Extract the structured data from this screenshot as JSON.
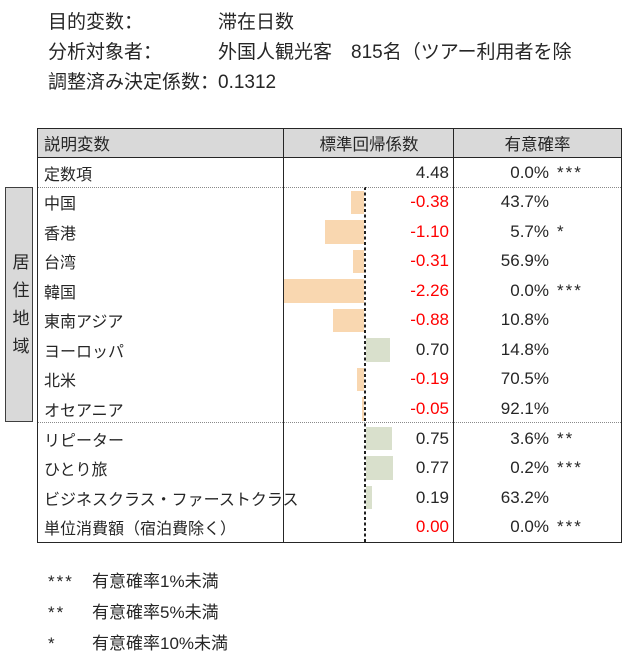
{
  "info": {
    "rows": [
      {
        "label": "目的変数：",
        "value": "滞在日数"
      },
      {
        "label": "分析対象者：",
        "value": "外国人観光客　815名（ツアー利用者を除"
      },
      {
        "label": "調整済み決定係数：",
        "value": "0.1312"
      }
    ]
  },
  "table": {
    "headers": {
      "variable": "説明変数",
      "coefficient": "標準回帰係数",
      "significance": "有意確率"
    },
    "group_label": "居住地域",
    "rows": [
      {
        "label": "定数項",
        "value": "4.48",
        "value_red": false,
        "has_bar": false,
        "pct": "0.0%",
        "stars": "***"
      },
      {
        "label": "中国",
        "value": "-0.38",
        "value_red": true,
        "has_bar": true,
        "pct": "43.7%",
        "stars": ""
      },
      {
        "label": "香港",
        "value": "-1.10",
        "value_red": true,
        "has_bar": true,
        "pct": "5.7%",
        "stars": "*"
      },
      {
        "label": "台湾",
        "value": "-0.31",
        "value_red": true,
        "has_bar": true,
        "pct": "56.9%",
        "stars": ""
      },
      {
        "label": "韓国",
        "value": "-2.26",
        "value_red": true,
        "has_bar": true,
        "pct": "0.0%",
        "stars": "***"
      },
      {
        "label": "東南アジア",
        "value": "-0.88",
        "value_red": true,
        "has_bar": true,
        "pct": "10.8%",
        "stars": ""
      },
      {
        "label": "ヨーロッパ",
        "value": "0.70",
        "value_red": false,
        "has_bar": true,
        "pct": "14.8%",
        "stars": ""
      },
      {
        "label": "北米",
        "value": "-0.19",
        "value_red": true,
        "has_bar": true,
        "pct": "70.5%",
        "stars": ""
      },
      {
        "label": "オセアニア",
        "value": "-0.05",
        "value_red": true,
        "has_bar": true,
        "pct": "92.1%",
        "stars": ""
      },
      {
        "label": "リピーター",
        "value": "0.75",
        "value_red": false,
        "has_bar": true,
        "pct": "3.6%",
        "stars": "**"
      },
      {
        "label": "ひとり旅",
        "value": "0.77",
        "value_red": false,
        "has_bar": true,
        "pct": "0.2%",
        "stars": "***"
      },
      {
        "label": "ビジネスクラス・ファーストクラス",
        "value": "0.19",
        "value_red": false,
        "has_bar": true,
        "pct": "63.2%",
        "stars": ""
      },
      {
        "label": "単位消費額（宿泊費除く）",
        "value": "0.00",
        "value_red": true,
        "has_bar": true,
        "pct": "0.0%",
        "stars": "***"
      }
    ],
    "bar_colors": {
      "negative": "#f9d7b0",
      "positive": "#d9e0cc"
    },
    "value_red_color": "#ff0000"
  },
  "notes": [
    {
      "stars": "***",
      "label": "有意確率1%未満"
    },
    {
      "stars": "**",
      "label": "有意確率5%未満"
    },
    {
      "stars": "*",
      "label": "有意確率10%未満"
    }
  ]
}
